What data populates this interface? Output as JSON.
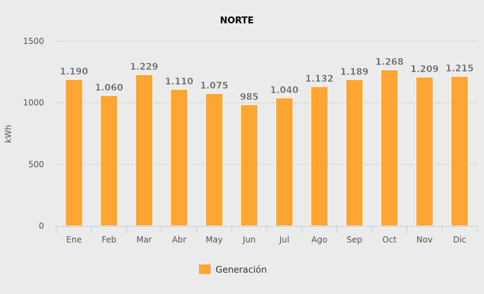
{
  "chart_data": {
    "type": "bar",
    "title": "NORTE",
    "xlabel": "",
    "ylabel": "kWh",
    "ylim": [
      0,
      1500
    ],
    "yticks": [
      0,
      500,
      1000,
      1500
    ],
    "ytick_labels": [
      "0",
      "500",
      "1000",
      "1500"
    ],
    "grid": true,
    "legend_position": "bottom",
    "categories": [
      "Ene",
      "Feb",
      "Mar",
      "Abr",
      "May",
      "Jun",
      "Jul",
      "Ago",
      "Sep",
      "Oct",
      "Nov",
      "Dic"
    ],
    "series": [
      {
        "name": "Generación",
        "color": "#ffa533",
        "values": [
          1190,
          1060,
          1229,
          1110,
          1075,
          985,
          1040,
          1132,
          1189,
          1268,
          1209,
          1215
        ],
        "data_labels": [
          "1.190",
          "1.060",
          "1.229",
          "1.110",
          "1.075",
          "985",
          "1.040",
          "1.132",
          "1.189",
          "1.268",
          "1.209",
          "1.215"
        ]
      }
    ]
  }
}
